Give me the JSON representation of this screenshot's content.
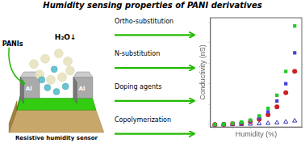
{
  "chart_data": {
    "type": "scatter",
    "title": "Humidity sensing properties of PANI derivatives",
    "annotations": [
      "Al",
      "Al",
      "H₂O↓",
      "PANIs",
      "Resistive humidity sensor",
      "Ortho-substitution",
      "N-substitution",
      "Doping agents",
      "Copolymerization"
    ],
    "x_label": "Humidity (%)",
    "y_label": "Conductivity (nS)",
    "x": [
      0,
      1,
      2,
      3,
      4,
      5,
      6,
      7,
      8,
      9
    ],
    "series": [
      {
        "color": "#22cc22",
        "marker": "square",
        "values": [
          0.01,
          0.02,
          0.04,
          0.07,
          0.12,
          0.22,
          0.4,
          0.72,
          1.3,
          2.4
        ]
      },
      {
        "color": "#4444dd",
        "marker": "square",
        "values": [
          0.01,
          0.015,
          0.03,
          0.055,
          0.1,
          0.18,
          0.32,
          0.58,
          1.0,
          1.75
        ]
      },
      {
        "color": "#cc2222",
        "marker": "circle",
        "values": [
          0.01,
          0.015,
          0.025,
          0.04,
          0.08,
          0.14,
          0.25,
          0.44,
          0.78,
          1.3
        ]
      },
      {
        "color": "#3333bb",
        "marker": "triangle-open",
        "values": [
          0.005,
          0.007,
          0.01,
          0.015,
          0.022,
          0.03,
          0.04,
          0.055,
          0.075,
          0.1
        ]
      }
    ],
    "xlim": [
      -0.5,
      9.8
    ],
    "xticks": [
      0,
      2,
      4,
      6,
      8
    ],
    "ylim": [
      -0.05,
      2.6
    ],
    "yticks": [
      0,
      0.5,
      1,
      1.5,
      2,
      2.5
    ],
    "grid": false,
    "tick_labels": false
  }
}
